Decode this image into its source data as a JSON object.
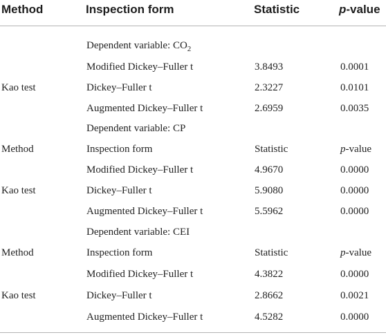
{
  "header": {
    "method": "Method",
    "inspection_form": "Inspection form",
    "statistic": "Statistic",
    "p_italic": "p",
    "p_suffix": "-value"
  },
  "sections": [
    {
      "dependent_label": "Dependent variable: CO",
      "dependent_sub": "2",
      "rows": [
        {
          "method": "",
          "form": "Modified Dickey–Fuller t",
          "statistic": "3.8493",
          "p_value": "0.0001"
        },
        {
          "method": "Kao test",
          "form": "Dickey–Fuller t",
          "statistic": "2.3227",
          "p_value": "0.0101"
        },
        {
          "method": "",
          "form": "Augmented Dickey–Fuller t",
          "statistic": "2.6959",
          "p_value": "0.0035"
        }
      ]
    },
    {
      "dependent_label": "Dependent variable: CP",
      "subheader": {
        "method": "Method",
        "form": "Inspection form",
        "statistic": "Statistic",
        "p_italic": "p",
        "p_suffix": "-value"
      },
      "rows": [
        {
          "method": "",
          "form": "Modified Dickey–Fuller t",
          "statistic": "4.9670",
          "p_value": "0.0000"
        },
        {
          "method": "Kao test",
          "form": "Dickey–Fuller t",
          "statistic": "5.9080",
          "p_value": "0.0000"
        },
        {
          "method": "",
          "form": "Augmented Dickey–Fuller t",
          "statistic": "5.5962",
          "p_value": "0.0000"
        }
      ]
    },
    {
      "dependent_label": "Dependent variable: CEI",
      "subheader": {
        "method": "Method",
        "form": "Inspection form",
        "statistic": "Statistic",
        "p_italic": "p",
        "p_suffix": "-value"
      },
      "rows": [
        {
          "method": "",
          "form": "Modified Dickey–Fuller t",
          "statistic": "4.3822",
          "p_value": "0.0000"
        },
        {
          "method": "Kao test",
          "form": "Dickey–Fuller t",
          "statistic": "2.8662",
          "p_value": "0.0021"
        },
        {
          "method": "",
          "form": "Augmented Dickey–Fuller t",
          "statistic": "4.5282",
          "p_value": "0.0000"
        }
      ]
    }
  ]
}
